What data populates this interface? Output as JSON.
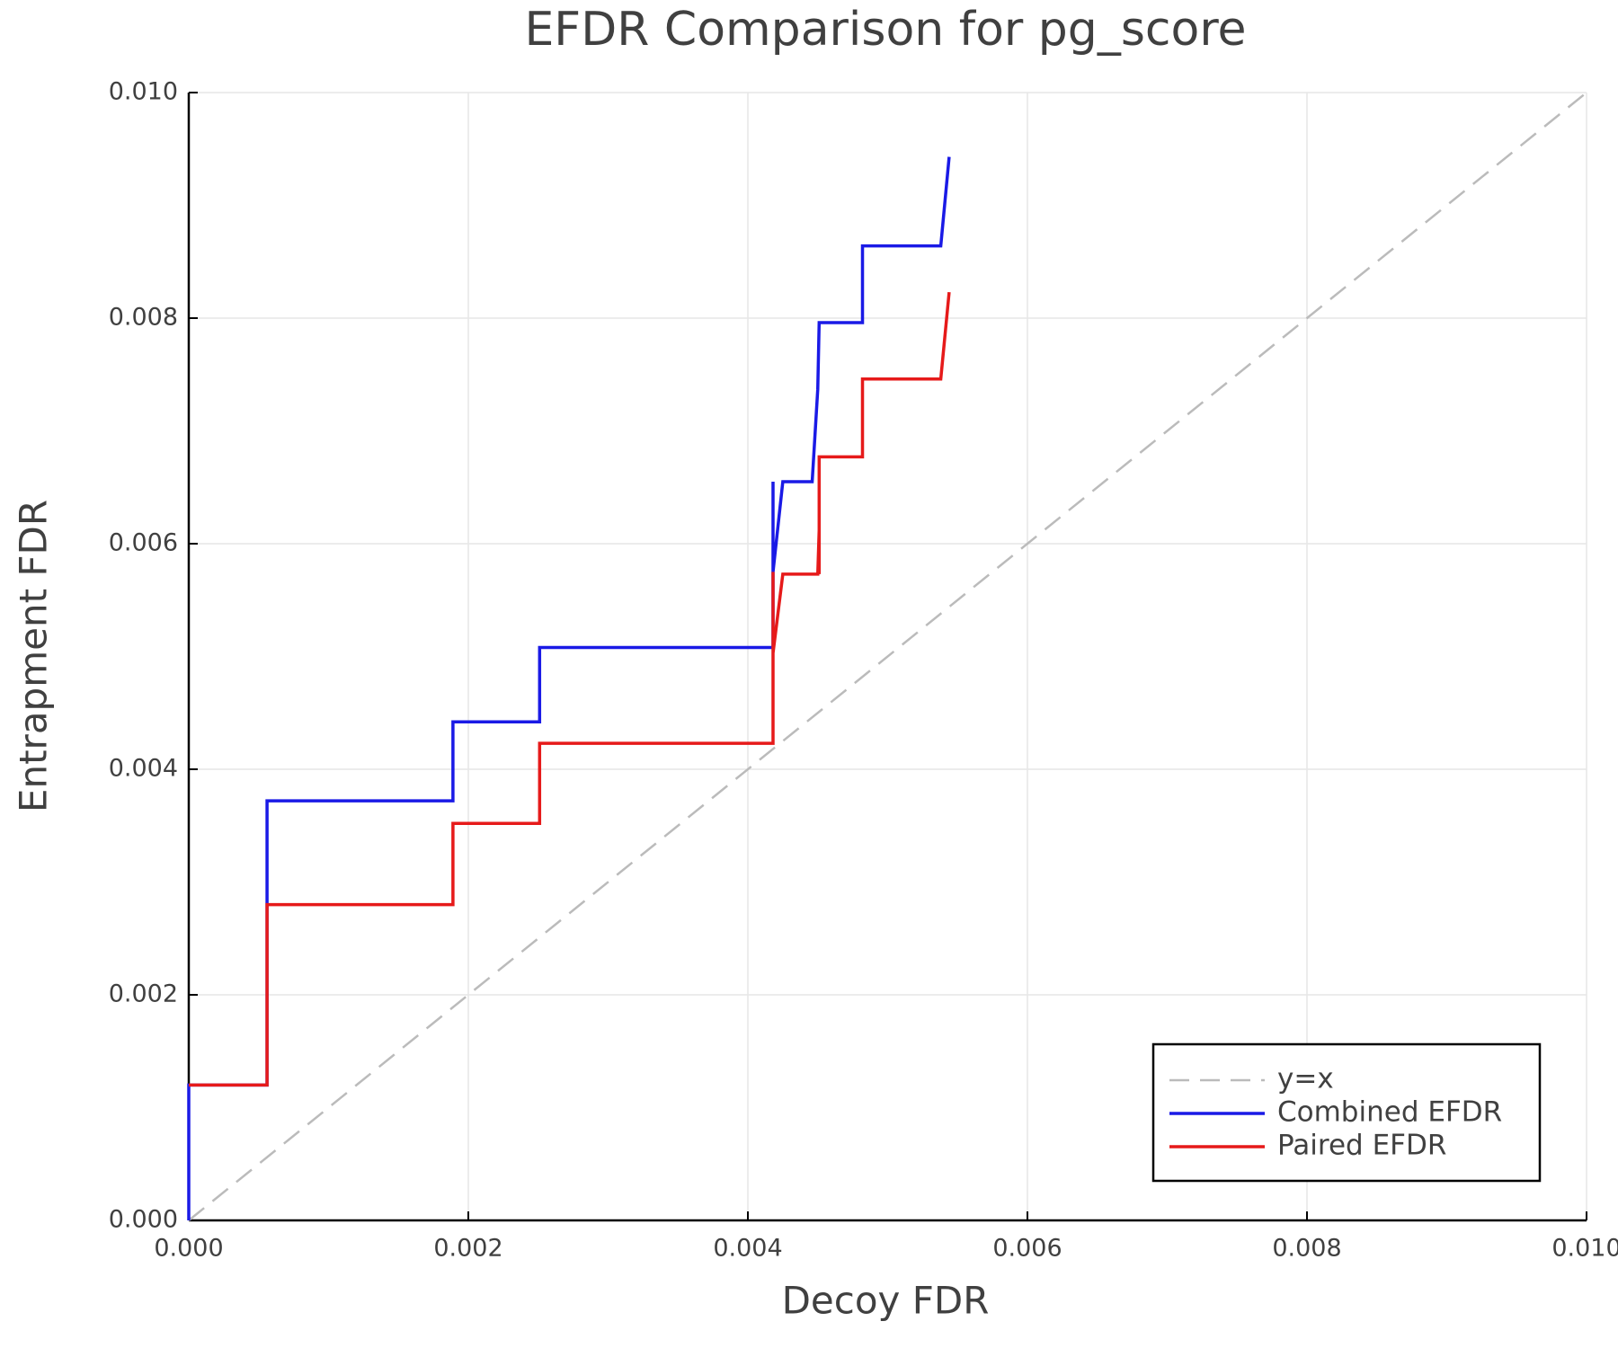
{
  "chart_data": {
    "type": "line",
    "title": "EFDR Comparison for pg_score",
    "x_label": "Decoy FDR",
    "y_label": "Entrapment FDR",
    "xlim": [
      0,
      0.01
    ],
    "ylim": [
      0,
      0.01
    ],
    "xticks": [
      {
        "value": 0,
        "label": "0.000"
      },
      0.002,
      0.004,
      0.006,
      0.008,
      {
        "value": 0.01,
        "label": "0.010"
      }
    ],
    "yticks": [
      {
        "value": 0,
        "label": "0.000"
      },
      0.002,
      0.004,
      0.006,
      0.008,
      {
        "value": 0.01,
        "label": "0.010"
      }
    ],
    "grid": true,
    "legend": "lower right",
    "series": [
      {
        "name": "y=x",
        "color": "#bbbbbb",
        "dashed": true,
        "x": [
          0,
          0.01
        ],
        "values": [
          0,
          0.01
        ]
      },
      {
        "name": "Combined EFDR",
        "color": "#1a1ae6",
        "dashed": false,
        "x": [
          0,
          0,
          0.00056,
          0.00056,
          0.00189,
          0.00189,
          0.00251,
          0.00251,
          0.00418,
          0.00418,
          0.00418,
          0.00425,
          0.00446,
          0.0045,
          0.00451,
          0.00482,
          0.00482,
          0.00538,
          0.00544
        ],
        "values": [
          0,
          0.0012,
          0.0012,
          0.00372,
          0.00372,
          0.00442,
          0.00442,
          0.00508,
          0.00508,
          0.00655,
          0.00575,
          0.00655,
          0.00655,
          0.00737,
          0.00796,
          0.00796,
          0.00864,
          0.00864,
          0.00943
        ]
      },
      {
        "name": "Paired EFDR",
        "color": "#e61a1a",
        "dashed": false,
        "x": [
          0,
          0.00056,
          0.00056,
          0.00189,
          0.00189,
          0.00251,
          0.00251,
          0.00418,
          0.00418,
          0.00418,
          0.00425,
          0.0045,
          0.00451,
          0.00451,
          0.00451,
          0.00482,
          0.00482,
          0.00538,
          0.00544
        ],
        "values": [
          0.0012,
          0.0012,
          0.0028,
          0.0028,
          0.00352,
          0.00352,
          0.00423,
          0.00423,
          0.00575,
          0.00503,
          0.00573,
          0.00573,
          0.00612,
          0.00573,
          0.00677,
          0.00677,
          0.00746,
          0.00746,
          0.00823
        ]
      }
    ]
  }
}
